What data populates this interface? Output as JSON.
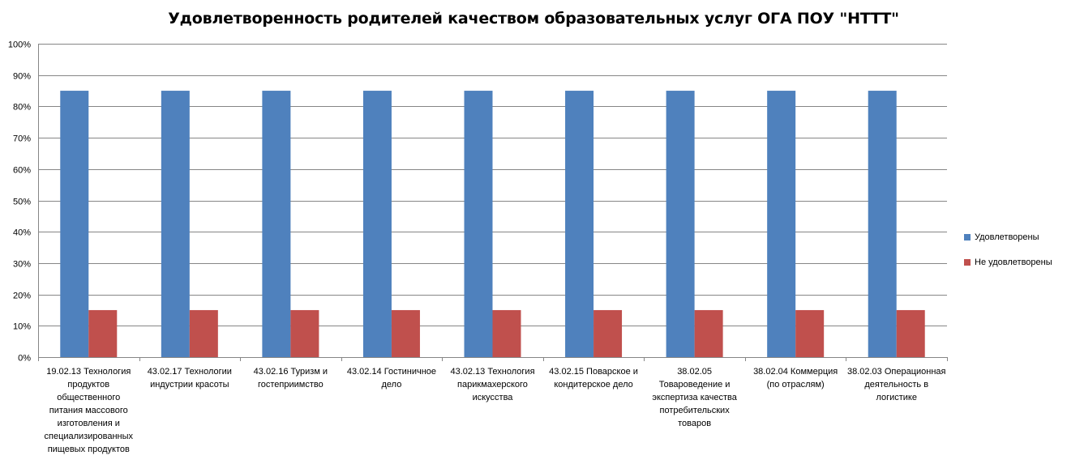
{
  "chart_data": {
    "type": "bar",
    "title": "Удовлетворенность родителей качеством образовательных услуг ОГА ПОУ \"НТТТ\"",
    "categories": [
      "19.02.13 Технология продуктов общественного питания массового изготовления и специализированных пищевых продуктов",
      "43.02.17 Технологии индустрии красоты",
      "43.02.16 Туризм и гостеприимство",
      "43.02.14 Гостиничное дело",
      "43.02.13 Технология парикмахерского искусства",
      "43.02.15 Поварское и кондитерское дело",
      "38.02.05 Товароведение и экспертиза качества потребительских товаров",
      "38.02.04 Коммерция (по отраслям)",
      "38.02.03 Операционная деятельность в логистике"
    ],
    "series": [
      {
        "name": "Удовлетворены",
        "color": "#4F81BD",
        "values": [
          0.85,
          0.85,
          0.85,
          0.85,
          0.85,
          0.85,
          0.85,
          0.85,
          0.85
        ]
      },
      {
        "name": "Не удовлетворены",
        "color": "#C0504D",
        "values": [
          0.15,
          0.15,
          0.15,
          0.15,
          0.15,
          0.15,
          0.15,
          0.15,
          0.15
        ]
      }
    ],
    "ylim": [
      0,
      1
    ],
    "yticks": [
      "0%",
      "10%",
      "20%",
      "30%",
      "40%",
      "50%",
      "60%",
      "70%",
      "80%",
      "90%",
      "100%"
    ],
    "grid": true,
    "legend_position": "right"
  }
}
